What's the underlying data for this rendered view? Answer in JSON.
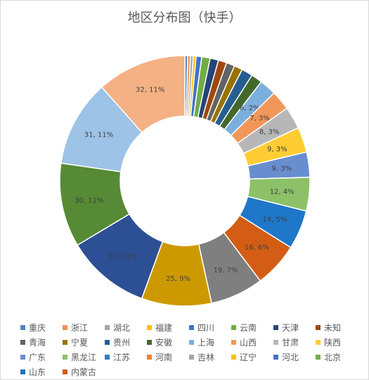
{
  "chart_data": {
    "type": "pie",
    "subtype": "doughnut",
    "title": "地区分布图（快手）",
    "legend_position": "bottom",
    "slices": [
      {
        "name": "重庆",
        "value": 1,
        "color": "#4e86c3"
      },
      {
        "name": "浙江",
        "value": 1,
        "color": "#f2904e"
      },
      {
        "name": "湖北",
        "value": 1,
        "color": "#a5a5a5"
      },
      {
        "name": "福建",
        "value": 1,
        "color": "#ffc000"
      },
      {
        "name": "四川",
        "value": 2,
        "color": "#4472c4"
      },
      {
        "name": "云南",
        "value": 3,
        "color": "#70ad47"
      },
      {
        "name": "天津",
        "value": 3,
        "color": "#264478"
      },
      {
        "name": "未知",
        "value": 3,
        "color": "#9e480e"
      },
      {
        "name": "青海",
        "value": 3,
        "color": "#636363"
      },
      {
        "name": "宁夏",
        "value": 3,
        "color": "#997300"
      },
      {
        "name": "贵州",
        "value": 4,
        "color": "#255e91"
      },
      {
        "name": "安徽",
        "value": 4,
        "color": "#43682b"
      },
      {
        "name": "上海",
        "value": 5,
        "color": "#7cafdd"
      },
      {
        "name": "山西",
        "value": 5,
        "color": "#f1975a"
      },
      {
        "name": "甘肃",
        "value": 6,
        "color": "#b7b7b7"
      },
      {
        "name": "陕西",
        "value": 6,
        "color": "#ffcd33"
      },
      {
        "name": "广东",
        "value": 6,
        "color": "#698ed0"
      },
      {
        "name": "黑龙江",
        "value": 7,
        "color": "#8cc168"
      },
      {
        "name": "江苏",
        "value": 7,
        "color": "#327dc2"
      },
      {
        "name": "河南",
        "value": 8,
        "color": "#f67e2c"
      },
      {
        "name": "吉林",
        "value": 8,
        "color": "#a5a5a5"
      },
      {
        "name": "辽宁",
        "value": 9,
        "color": "#ffc000"
      },
      {
        "name": "河北",
        "value": 9,
        "color": "#4472c4"
      },
      {
        "name": "北京",
        "value": 9,
        "color": "#70ad47"
      },
      {
        "name": "山东",
        "value": 10,
        "color": "#1f77b4"
      },
      {
        "name": "内蒙古",
        "value": 10,
        "color": "#d35d14"
      }
    ],
    "ring_slices": [
      {
        "name": "ext-1",
        "value": 8,
        "color": "#3b75bf",
        "label": ""
      },
      {
        "name": "ext-2",
        "value": 12,
        "color": "#62a0de",
        "label": ""
      }
    ],
    "labels": [
      {
        "text": "6, 2%"
      },
      {
        "text": "7, 3%"
      },
      {
        "text": "8, 3%"
      },
      {
        "text": "9, 3%"
      },
      {
        "text": "9, 3%"
      },
      {
        "text": "12, 4%"
      },
      {
        "text": "14, 5%"
      },
      {
        "text": "16, 6%"
      },
      {
        "text": "19, 7%"
      },
      {
        "text": "25, 9%"
      },
      {
        "text": "30, 11%"
      },
      {
        "text": "30, 11%"
      },
      {
        "text": "31, 11%"
      },
      {
        "text": "32, 11%"
      }
    ]
  }
}
